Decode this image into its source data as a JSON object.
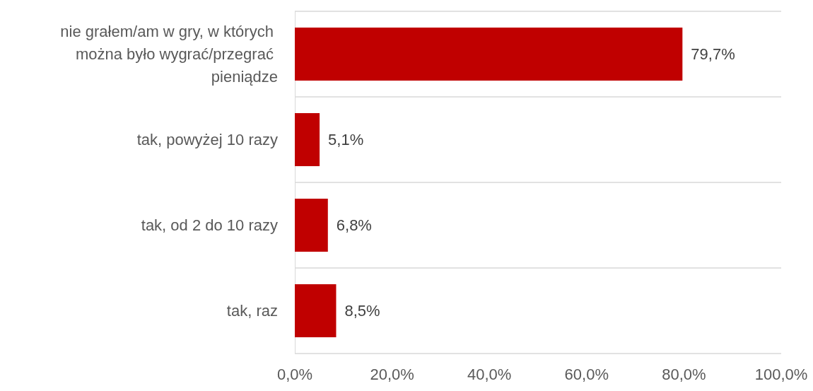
{
  "chart_data": {
    "type": "bar",
    "orientation": "horizontal",
    "categories": [
      "nie grałem/am w gry, w których można było wygrać/przegrać pieniądze",
      "tak, powyżej 10 razy",
      "tak, od 2 do 10 razy",
      "tak, raz"
    ],
    "values": [
      79.7,
      5.1,
      6.8,
      8.5
    ],
    "value_labels": [
      "79,7%",
      "5,1%",
      "6,8%",
      "8,5%"
    ],
    "color": "#c00000",
    "xlim": [
      0,
      100
    ],
    "xticks": [
      {
        "value": 0,
        "label": "0,0%"
      },
      {
        "value": 20,
        "label": "20,0%"
      },
      {
        "value": 40,
        "label": "40,0%"
      },
      {
        "value": 60,
        "label": "60,0%"
      },
      {
        "value": 80,
        "label": "80,0%"
      },
      {
        "value": 100,
        "label": "100,0%"
      }
    ],
    "grid": "y"
  }
}
